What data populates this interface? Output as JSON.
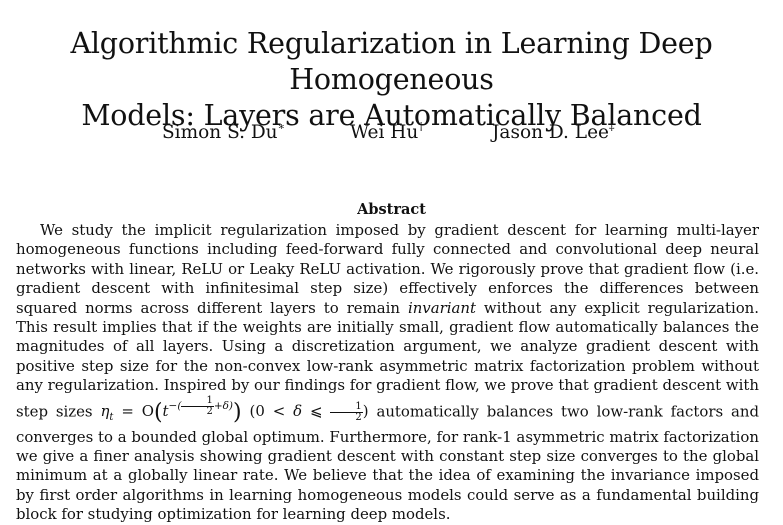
{
  "paper": {
    "title_line1": "Algorithmic Regularization in Learning Deep Homogeneous",
    "title_line2": "Models: Layers are Automatically Balanced",
    "authors": [
      {
        "name": "Simon S. Du",
        "mark": "∗"
      },
      {
        "name": "Wei Hu",
        "mark": "†"
      },
      {
        "name": "Jason D. Lee",
        "mark": "‡"
      }
    ],
    "abstract_heading": "Abstract",
    "abstract": {
      "part1": "We study the implicit regularization imposed by gradient descent for learning multi-layer homogeneous functions including feed-forward fully connected and convolutional deep neural networks with linear, ReLU or Leaky ReLU activation. We rigorously prove that gradient flow (i.e. gradient descent with infinitesimal step size) effectively enforces the differences between squared norms across different layers to remain ",
      "emphasis": "invariant",
      "part2": " without any explicit regularization. This result implies that if the weights are initially small, gradient flow automatically balances the magnitudes of all layers. Using a discretization argument, we analyze gradient descent with positive step size for the non-convex low-rank asymmetric matrix factorization problem without any regularization. Inspired by our findings for gradient flow, we prove that gradient descent with step sizes ",
      "math_step": "η",
      "math_step_sub": "t",
      "math_eq": " = O",
      "math_t": "t",
      "math_exp": "−(",
      "math_half": "1",
      "math_two": "2",
      "math_delta": "+δ)",
      "math_cond_open": " (0 < ",
      "math_cond_delta": "δ",
      "math_cond_le": " ⩽ ",
      "math_cond_close": ")",
      "part3": " automatically balances two low-rank factors and converges to a bounded global optimum. Furthermore, for rank-1 asymmetric matrix factorization we give a finer analysis showing gradient descent with constant step size converges to the global minimum at a globally linear rate. We believe that the idea of examining the invariance imposed by first order algorithms in learning homogeneous models could serve as a fundamental building block for studying optimization for learning deep models."
    }
  }
}
